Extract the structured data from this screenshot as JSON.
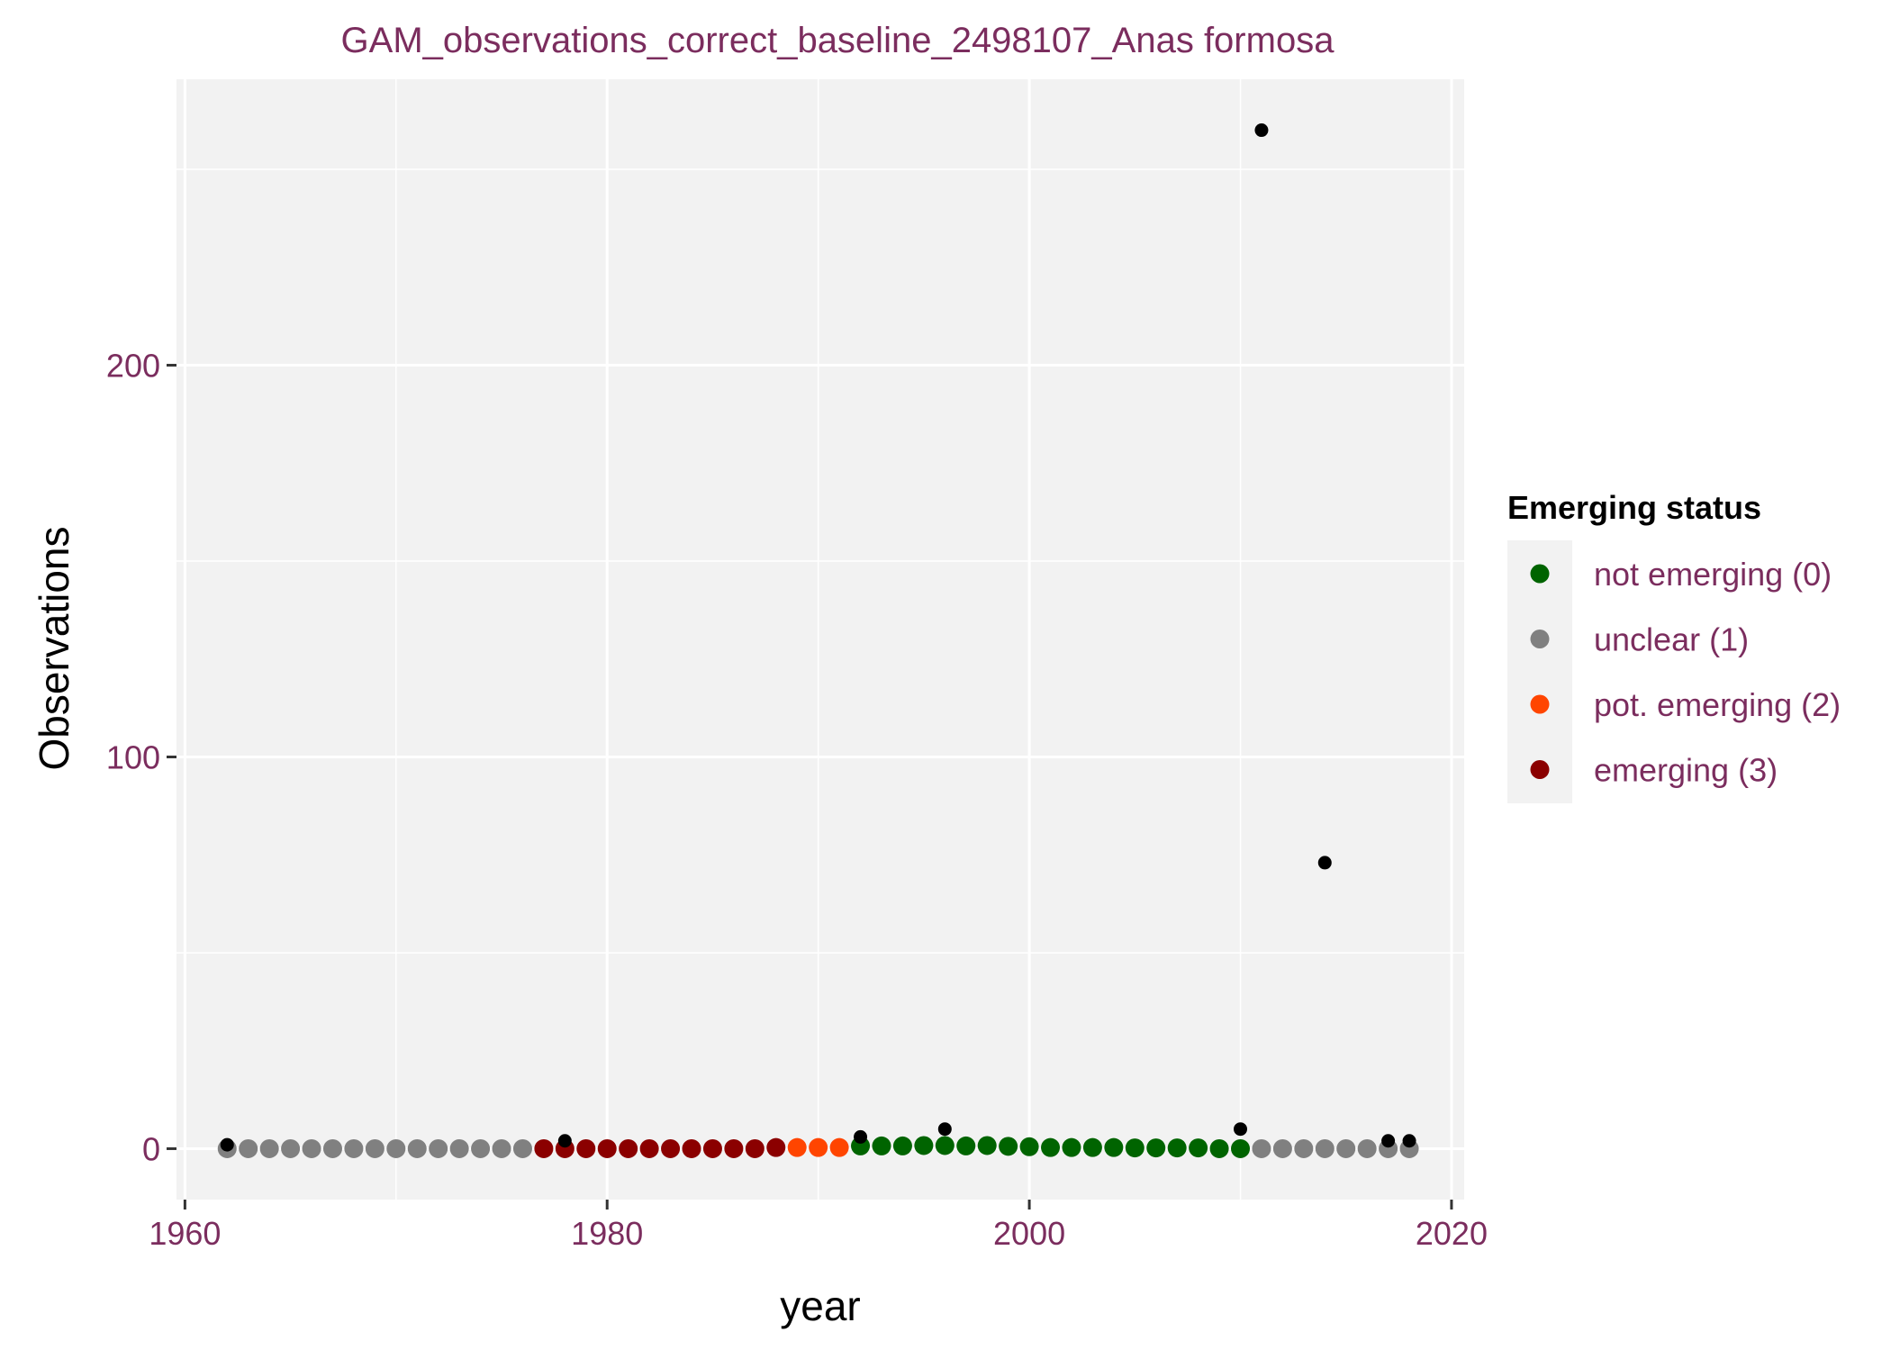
{
  "chart_data": {
    "type": "scatter",
    "title": "GAM_observations_correct_baseline_2498107_Anas formosa",
    "xlabel": "year",
    "ylabel": "Observations",
    "xlim": [
      1959.6,
      2020.6
    ],
    "ylim": [
      -13,
      273
    ],
    "x_ticks": [
      1960,
      1980,
      2000,
      2020
    ],
    "y_ticks": [
      0,
      100,
      200
    ],
    "grid": true,
    "panel_background": "#f2f2f2",
    "legend": {
      "title": "Emerging status",
      "placement": "right",
      "entries": [
        {
          "label": "not emerging (0)",
          "color": "#006400"
        },
        {
          "label": "unclear (1)",
          "color": "#808080"
        },
        {
          "label": "pot. emerging (2)",
          "color": "#ff4500"
        },
        {
          "label": "emerging (3)",
          "color": "#8b0000"
        }
      ]
    },
    "observations": {
      "color": "#000000",
      "x": [
        1962,
        1978,
        1992,
        1996,
        2010,
        2011,
        2014,
        2017,
        2018
      ],
      "y": [
        1,
        2,
        3,
        5,
        5,
        260,
        73,
        2,
        2
      ]
    },
    "gam_fit": {
      "x": [
        1962,
        1963,
        1964,
        1965,
        1966,
        1967,
        1968,
        1969,
        1970,
        1971,
        1972,
        1973,
        1974,
        1975,
        1976,
        1977,
        1978,
        1979,
        1980,
        1981,
        1982,
        1983,
        1984,
        1985,
        1986,
        1987,
        1988,
        1989,
        1990,
        1991,
        1992,
        1993,
        1994,
        1995,
        1996,
        1997,
        1998,
        1999,
        2000,
        2001,
        2002,
        2003,
        2004,
        2005,
        2006,
        2007,
        2008,
        2009,
        2010,
        2011,
        2012,
        2013,
        2014,
        2015,
        2016,
        2017,
        2018
      ],
      "y": [
        0,
        0,
        0,
        0,
        0,
        0,
        0,
        0,
        0,
        0,
        0,
        0,
        0,
        0,
        0,
        0,
        0,
        0,
        0,
        0,
        0,
        0,
        0,
        0,
        0,
        0,
        0.3,
        0.3,
        0.3,
        0.3,
        0.7,
        0.7,
        0.7,
        0.8,
        0.8,
        0.7,
        0.8,
        0.6,
        0.5,
        0.3,
        0.3,
        0.3,
        0.3,
        0.2,
        0.2,
        0.2,
        0.2,
        0,
        0,
        0,
        0,
        0,
        0,
        0,
        0,
        0,
        0
      ],
      "status": [
        1,
        1,
        1,
        1,
        1,
        1,
        1,
        1,
        1,
        1,
        1,
        1,
        1,
        1,
        1,
        3,
        3,
        3,
        3,
        3,
        3,
        3,
        3,
        3,
        3,
        3,
        3,
        2,
        2,
        2,
        0,
        0,
        0,
        0,
        0,
        0,
        0,
        0,
        0,
        0,
        0,
        0,
        0,
        0,
        0,
        0,
        0,
        0,
        0,
        1,
        1,
        1,
        1,
        1,
        1,
        1,
        1
      ]
    }
  }
}
